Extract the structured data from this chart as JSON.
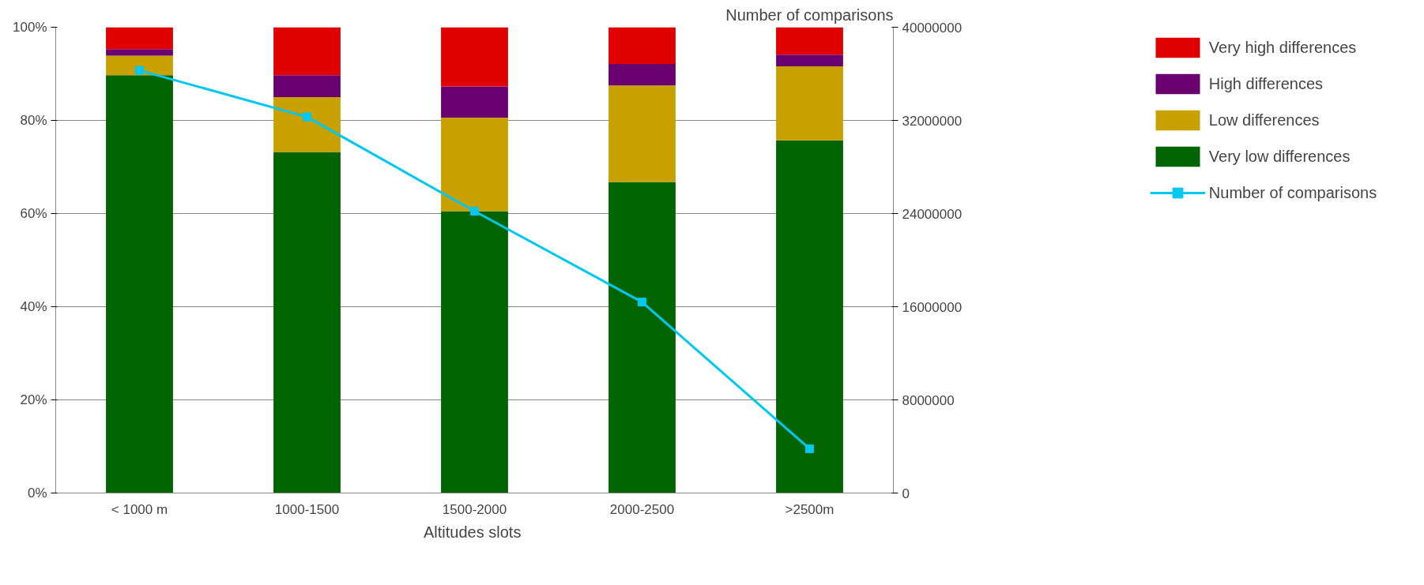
{
  "chart_data": {
    "type": "bar",
    "stacked": true,
    "xlabel": "Altitudes  slots",
    "y2label": "Number of comparisons",
    "categories": [
      "< 1000 m",
      "1000-1500",
      "1500-2000",
      "2000-2500",
      ">2500m"
    ],
    "series": [
      {
        "name": "Very low differences",
        "color": "#006400",
        "values": [
          89.7,
          73.2,
          60.5,
          66.8,
          75.7
        ]
      },
      {
        "name": "Low differences",
        "color": "#c8a000",
        "values": [
          4.2,
          11.8,
          20.1,
          20.7,
          15.9
        ]
      },
      {
        "name": "High differences",
        "color": "#6a0070",
        "values": [
          1.4,
          4.7,
          6.7,
          4.6,
          2.5
        ]
      },
      {
        "name": "Very high differences",
        "color": "#e00000",
        "values": [
          4.7,
          10.3,
          12.7,
          7.9,
          5.9
        ]
      },
      {
        "name": "Number of comparisons",
        "type": "line",
        "axis": "y2",
        "color": "#00c8f0",
        "marker": "square",
        "values": [
          36300000,
          32300000,
          24200000,
          16400000,
          3800000
        ]
      }
    ],
    "ylim": [
      0,
      100
    ],
    "yticks": [
      {
        "value": 0,
        "label": "0%"
      },
      {
        "value": 20,
        "label": "20%"
      },
      {
        "value": 40,
        "label": "40%"
      },
      {
        "value": 60,
        "label": "60%"
      },
      {
        "value": 80,
        "label": "80%"
      },
      {
        "value": 100,
        "label": "100%"
      }
    ],
    "y2lim": [
      0,
      40000000
    ],
    "y2ticks": [
      0,
      8000000,
      16000000,
      24000000,
      32000000,
      40000000
    ],
    "grid": "y",
    "legend": "right"
  }
}
